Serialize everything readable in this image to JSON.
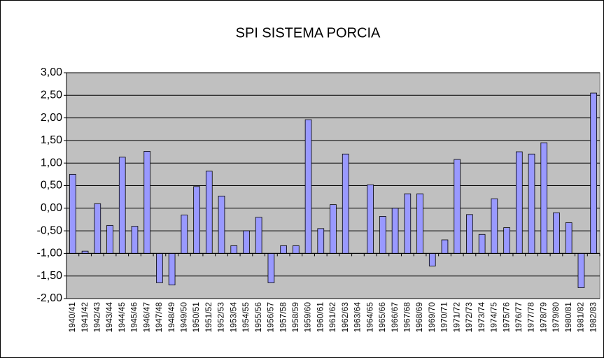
{
  "chart_data": {
    "type": "bar",
    "title": "SPI SISTEMA PORCIA",
    "categories": [
      "1940/41",
      "1941/42",
      "1942/43",
      "1943/44",
      "1944/45",
      "1945/46",
      "1946/47",
      "1947/48",
      "1948/49",
      "1949/50",
      "1950/51",
      "1951/52",
      "1952/53",
      "1953/54",
      "1954/55",
      "1955/56",
      "1956/57",
      "1957/58",
      "1958/59",
      "1959/60",
      "1960/61",
      "1961/62",
      "1962/63",
      "1963/64",
      "1964/65",
      "1965/66",
      "1966/67",
      "1967/68",
      "1968/69",
      "1969/70",
      "1970/71",
      "1971/72",
      "1972/73",
      "1973/74",
      "1974/75",
      "1975/76",
      "1976/77",
      "1977/78",
      "1978/79",
      "1979/80",
      "1980/81",
      "1981/82",
      "1982/83"
    ],
    "values": [
      0.75,
      -0.95,
      0.1,
      -0.38,
      1.13,
      -0.4,
      1.26,
      -1.65,
      -1.7,
      -0.15,
      0.48,
      0.82,
      0.27,
      -0.83,
      -0.5,
      -0.2,
      -1.65,
      -0.83,
      -0.83,
      1.96,
      -0.45,
      0.08,
      1.2,
      -1.0,
      0.52,
      -0.18,
      0.0,
      0.32,
      0.32,
      -1.28,
      -0.7,
      1.08,
      -0.14,
      -0.58,
      0.21,
      -0.43,
      1.25,
      1.2,
      1.45,
      -0.1,
      -0.32,
      -1.76,
      2.55
    ],
    "color": "#9999ff",
    "baseline": -1,
    "ylim": [
      -2,
      3
    ],
    "yticks": [
      {
        "value": -2,
        "label": "-2,00"
      },
      {
        "value": -1.5,
        "label": "-1,50"
      },
      {
        "value": -1,
        "label": "-1,00"
      },
      {
        "value": -0.5,
        "label": "-0,50"
      },
      {
        "value": 0,
        "label": "0,00"
      },
      {
        "value": 0.5,
        "label": "0,50"
      },
      {
        "value": 1,
        "label": "1,00"
      },
      {
        "value": 1.5,
        "label": "1,50"
      },
      {
        "value": 2,
        "label": "2,00"
      },
      {
        "value": 2.5,
        "label": "2,50"
      },
      {
        "value": 3,
        "label": "3,00"
      }
    ],
    "grid": true
  }
}
